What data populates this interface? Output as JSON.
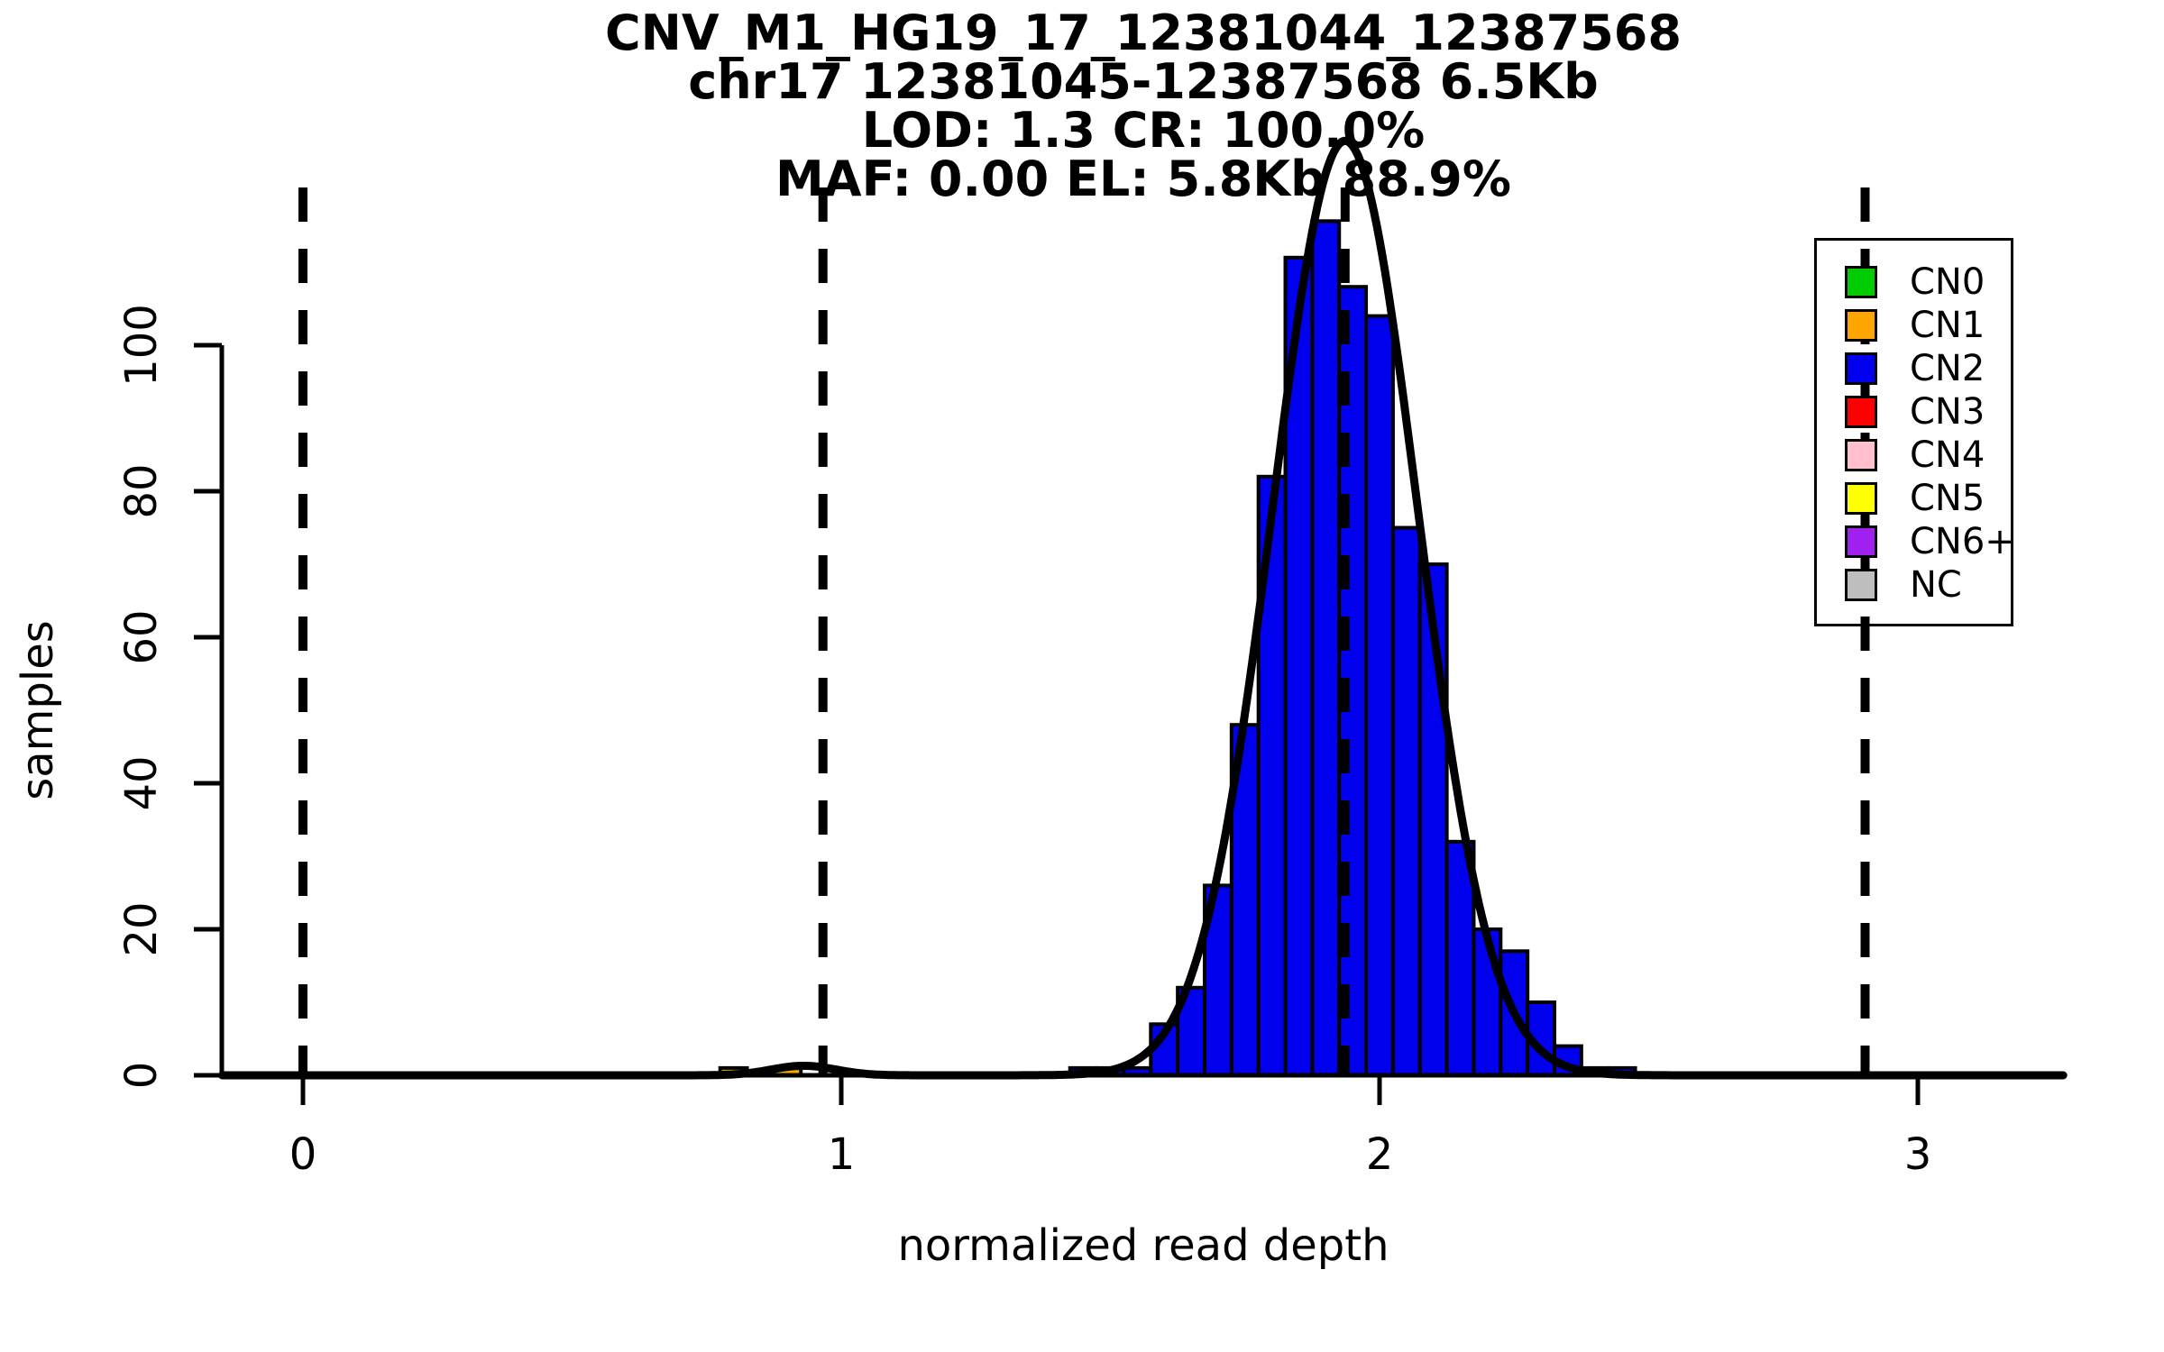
{
  "title": {
    "line1": "CNV_M1_HG19_17_12381044_12387568",
    "line2": "chr17 12381045-12387568 6.5Kb",
    "line3": "LOD: 1.3 CR: 100.0%",
    "line4": "MAF: 0.00 EL: 5.8Kb 88.9%"
  },
  "axes": {
    "xlabel": "normalized read depth",
    "ylabel": "samples",
    "x_tick_labels": [
      "0",
      "1",
      "2",
      "3"
    ],
    "y_tick_labels": [
      "0",
      "20",
      "40",
      "60",
      "80",
      "100"
    ]
  },
  "legend": {
    "items": [
      {
        "label": "CN0",
        "color": "#00CC00"
      },
      {
        "label": "CN1",
        "color": "#FFA500"
      },
      {
        "label": "CN2",
        "color": "#0000EE"
      },
      {
        "label": "CN3",
        "color": "#FF0000"
      },
      {
        "label": "CN4",
        "color": "#FFC0CB"
      },
      {
        "label": "CN5",
        "color": "#FFFF00"
      },
      {
        "label": "CN6+",
        "color": "#A020F0"
      },
      {
        "label": "NC",
        "color": "#BEBEBE"
      }
    ]
  },
  "chart_data": {
    "type": "bar",
    "subtype": "histogram",
    "title": "CNV_M1_HG19_17_12381044_12387568",
    "xlabel": "normalized read depth",
    "ylabel": "samples",
    "xlim": [
      -0.15,
      3.27
    ],
    "ylim": [
      0,
      128
    ],
    "x_ticks": [
      0,
      1,
      2,
      3
    ],
    "y_ticks": [
      0,
      20,
      40,
      60,
      80,
      100
    ],
    "grid": false,
    "legend_position": "top-right",
    "bin_width": 0.05,
    "bins": [
      {
        "center": 0.8,
        "count": 1,
        "cn": "CN1"
      },
      {
        "center": 0.9,
        "count": 1,
        "cn": "CN1"
      },
      {
        "center": 1.45,
        "count": 1,
        "cn": "CN2"
      },
      {
        "center": 1.5,
        "count": 1,
        "cn": "CN2"
      },
      {
        "center": 1.55,
        "count": 1,
        "cn": "CN2"
      },
      {
        "center": 1.6,
        "count": 7,
        "cn": "CN2"
      },
      {
        "center": 1.65,
        "count": 12,
        "cn": "CN2"
      },
      {
        "center": 1.7,
        "count": 26,
        "cn": "CN2"
      },
      {
        "center": 1.75,
        "count": 48,
        "cn": "CN2"
      },
      {
        "center": 1.8,
        "count": 82,
        "cn": "CN2"
      },
      {
        "center": 1.85,
        "count": 112,
        "cn": "CN2"
      },
      {
        "center": 1.9,
        "count": 117,
        "cn": "CN2"
      },
      {
        "center": 1.95,
        "count": 108,
        "cn": "CN2"
      },
      {
        "center": 2.0,
        "count": 104,
        "cn": "CN2"
      },
      {
        "center": 2.05,
        "count": 75,
        "cn": "CN2"
      },
      {
        "center": 2.1,
        "count": 70,
        "cn": "CN2"
      },
      {
        "center": 2.15,
        "count": 32,
        "cn": "CN2"
      },
      {
        "center": 2.2,
        "count": 20,
        "cn": "CN2"
      },
      {
        "center": 2.25,
        "count": 17,
        "cn": "CN2"
      },
      {
        "center": 2.3,
        "count": 10,
        "cn": "CN2"
      },
      {
        "center": 2.35,
        "count": 4,
        "cn": "CN2"
      },
      {
        "center": 2.4,
        "count": 1,
        "cn": "CN2"
      },
      {
        "center": 2.45,
        "count": 1,
        "cn": "CN2"
      }
    ],
    "cluster_mean_dashed_lines": [
      0.0,
      0.966,
      1.936,
      2.902
    ],
    "density_curve_components": [
      {
        "amplitude": 128,
        "mean": 1.936,
        "sd": 0.135
      },
      {
        "amplitude": 1.3,
        "mean": 0.93,
        "sd": 0.06
      }
    ]
  }
}
